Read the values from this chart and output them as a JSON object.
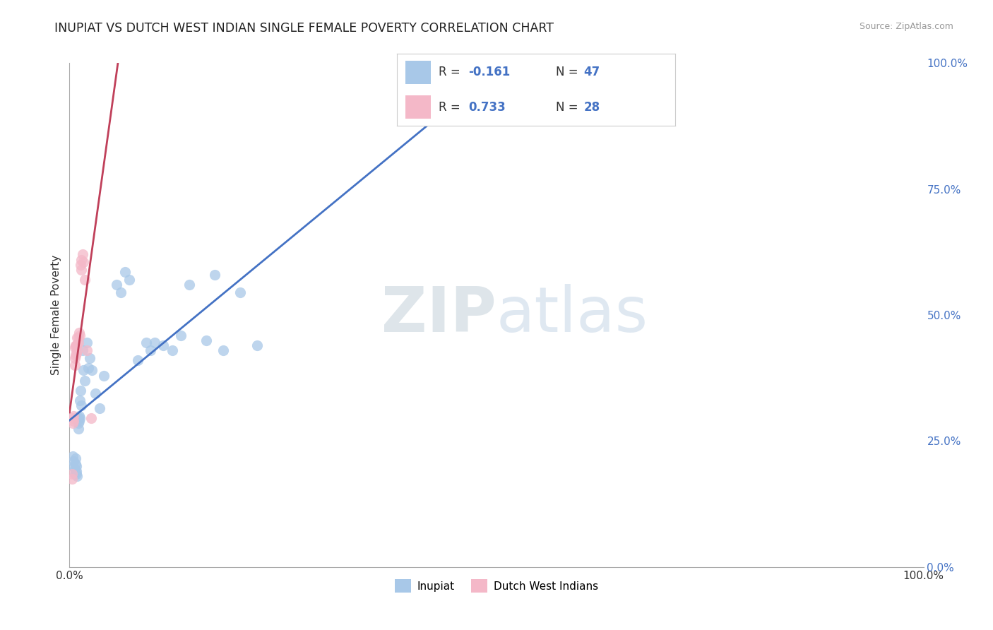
{
  "title": "INUPIAT VS DUTCH WEST INDIAN SINGLE FEMALE POVERTY CORRELATION CHART",
  "source": "Source: ZipAtlas.com",
  "ylabel": "Single Female Poverty",
  "xlim": [
    0,
    1
  ],
  "ylim": [
    0,
    1
  ],
  "ytick_positions_right": [
    1.0,
    0.75,
    0.5,
    0.25,
    0.0
  ],
  "ytick_labels_right": [
    "100.0%",
    "75.0%",
    "50.0%",
    "25.0%",
    "0.0%"
  ],
  "inupiat_color": "#a8c8e8",
  "dutch_color": "#f4b8c8",
  "trend_inupiat_color": "#4472c4",
  "trend_dutch_color": "#c0405a",
  "background_color": "#ffffff",
  "grid_color": "#cccccc",
  "inupiat_x": [
    0.004,
    0.004,
    0.005,
    0.006,
    0.006,
    0.007,
    0.007,
    0.008,
    0.008,
    0.008,
    0.009,
    0.01,
    0.01,
    0.01,
    0.011,
    0.011,
    0.012,
    0.012,
    0.013,
    0.014,
    0.015,
    0.016,
    0.018,
    0.02,
    0.022,
    0.024,
    0.026,
    0.03,
    0.035,
    0.04,
    0.055,
    0.06,
    0.065,
    0.07,
    0.08,
    0.09,
    0.095,
    0.1,
    0.11,
    0.12,
    0.13,
    0.14,
    0.16,
    0.17,
    0.18,
    0.2,
    0.22
  ],
  "inupiat_y": [
    0.22,
    0.2,
    0.21,
    0.195,
    0.185,
    0.215,
    0.205,
    0.19,
    0.2,
    0.185,
    0.18,
    0.295,
    0.285,
    0.275,
    0.3,
    0.29,
    0.33,
    0.295,
    0.35,
    0.32,
    0.43,
    0.39,
    0.37,
    0.445,
    0.395,
    0.415,
    0.39,
    0.345,
    0.315,
    0.38,
    0.56,
    0.545,
    0.585,
    0.57,
    0.41,
    0.445,
    0.43,
    0.445,
    0.44,
    0.43,
    0.46,
    0.56,
    0.45,
    0.58,
    0.43,
    0.545,
    0.44
  ],
  "dutch_x": [
    0.003,
    0.003,
    0.004,
    0.004,
    0.005,
    0.005,
    0.006,
    0.006,
    0.006,
    0.007,
    0.007,
    0.008,
    0.008,
    0.009,
    0.009,
    0.009,
    0.01,
    0.01,
    0.011,
    0.012,
    0.013,
    0.014,
    0.014,
    0.015,
    0.016,
    0.018,
    0.02,
    0.025
  ],
  "dutch_y": [
    0.185,
    0.175,
    0.295,
    0.285,
    0.3,
    0.29,
    0.435,
    0.415,
    0.4,
    0.44,
    0.42,
    0.44,
    0.425,
    0.455,
    0.44,
    0.43,
    0.455,
    0.445,
    0.465,
    0.46,
    0.6,
    0.61,
    0.59,
    0.62,
    0.605,
    0.57,
    0.43,
    0.295
  ],
  "title_fontsize": 12.5,
  "source_fontsize": 9,
  "legend_fontsize": 12,
  "axis_label_fontsize": 11,
  "tick_fontsize": 11
}
